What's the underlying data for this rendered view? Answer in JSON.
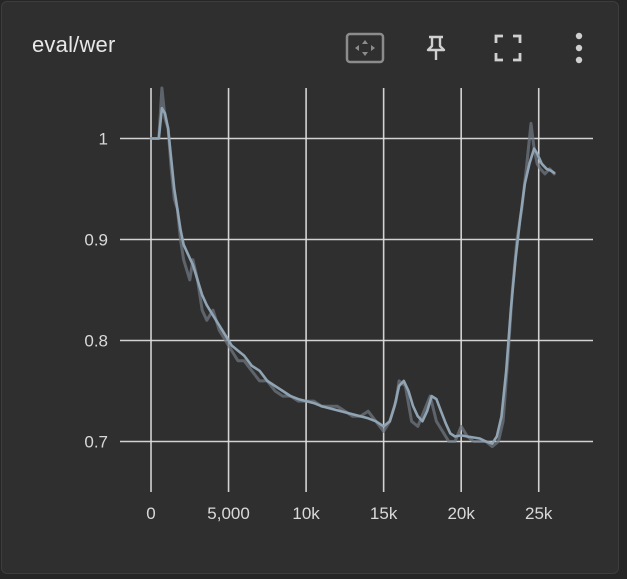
{
  "card": {
    "title": "eval/wer",
    "toolbar": [
      {
        "name": "fit-domain-button",
        "icon": "fit-to-data-icon"
      },
      {
        "name": "pin-button",
        "icon": "pin-icon"
      },
      {
        "name": "fullscreen-button",
        "icon": "fullscreen-icon"
      },
      {
        "name": "more-options-button",
        "icon": "more-vert-icon"
      }
    ]
  },
  "colors": {
    "background": "#2f2f2f",
    "grid": "#e0e0e0",
    "line_smoothed": "#90a4b4",
    "line_raw": "#6f7780",
    "tick_text": "#d9d9d9",
    "title_text": "#e8e8e8"
  },
  "chart_data": {
    "type": "line",
    "title": "eval/wer",
    "xlabel": "",
    "ylabel": "",
    "xlim": [
      -2000,
      28500
    ],
    "ylim": [
      0.65,
      1.05
    ],
    "x_ticks": [
      0,
      5000,
      10000,
      15000,
      20000,
      25000
    ],
    "x_tick_labels": [
      "0",
      "5,000",
      "10k",
      "15k",
      "20k",
      "25k"
    ],
    "y_ticks": [
      0.7,
      0.8,
      0.9,
      1.0
    ],
    "y_tick_labels": [
      "0.7",
      "0.8",
      "0.9",
      "1"
    ],
    "grid": true,
    "series": [
      {
        "name": "raw",
        "x": [
          0,
          500,
          700,
          900,
          1100,
          1300,
          1500,
          1700,
          1900,
          2100,
          2300,
          2500,
          2700,
          3000,
          3300,
          3600,
          4000,
          4400,
          4800,
          5200,
          5600,
          6000,
          6500,
          7000,
          7500,
          8000,
          8500,
          9000,
          9500,
          10000,
          10500,
          11000,
          11500,
          12000,
          12500,
          13000,
          13500,
          14000,
          14500,
          15000,
          15400,
          15800,
          16000,
          16400,
          16800,
          17200,
          17600,
          18000,
          18400,
          18800,
          19200,
          19600,
          20000,
          20400,
          20800,
          21200,
          21600,
          22000,
          22400,
          22700,
          23000,
          23300,
          23600,
          23900,
          24200,
          24500,
          24700,
          24900,
          25100,
          25400,
          25700,
          26000
        ],
        "values": [
          1.0,
          1.0,
          1.05,
          1.02,
          1.01,
          0.97,
          0.94,
          0.93,
          0.9,
          0.88,
          0.87,
          0.86,
          0.88,
          0.86,
          0.83,
          0.82,
          0.83,
          0.81,
          0.8,
          0.79,
          0.78,
          0.78,
          0.77,
          0.76,
          0.76,
          0.75,
          0.745,
          0.745,
          0.74,
          0.74,
          0.74,
          0.735,
          0.735,
          0.735,
          0.73,
          0.725,
          0.725,
          0.73,
          0.72,
          0.71,
          0.72,
          0.74,
          0.76,
          0.755,
          0.72,
          0.715,
          0.73,
          0.745,
          0.72,
          0.71,
          0.7,
          0.7,
          0.715,
          0.705,
          0.7,
          0.7,
          0.7,
          0.695,
          0.7,
          0.72,
          0.78,
          0.85,
          0.9,
          0.93,
          0.97,
          1.015,
          0.99,
          0.975,
          0.97,
          0.965,
          0.97,
          0.965
        ]
      },
      {
        "name": "smoothed",
        "x": [
          0,
          500,
          700,
          900,
          1100,
          1300,
          1500,
          1700,
          1900,
          2100,
          2400,
          2700,
          3000,
          3300,
          3600,
          4000,
          4400,
          4800,
          5200,
          5600,
          6000,
          6500,
          7000,
          7500,
          8000,
          8500,
          9000,
          9500,
          10000,
          10500,
          11000,
          11500,
          12000,
          12500,
          13000,
          13500,
          14000,
          14500,
          15000,
          15400,
          15700,
          16000,
          16300,
          16600,
          16900,
          17200,
          17500,
          17800,
          18100,
          18400,
          18700,
          19000,
          19300,
          19600,
          20000,
          20400,
          20800,
          21200,
          21600,
          22000,
          22300,
          22600,
          22900,
          23200,
          23500,
          23800,
          24100,
          24400,
          24700,
          24900,
          25200,
          25500,
          25800,
          26000
        ],
        "values": [
          1.0,
          1.0,
          1.03,
          1.025,
          1.01,
          0.98,
          0.95,
          0.93,
          0.91,
          0.895,
          0.885,
          0.875,
          0.86,
          0.845,
          0.835,
          0.825,
          0.815,
          0.805,
          0.795,
          0.79,
          0.785,
          0.775,
          0.77,
          0.76,
          0.755,
          0.75,
          0.745,
          0.742,
          0.74,
          0.738,
          0.735,
          0.733,
          0.731,
          0.729,
          0.727,
          0.725,
          0.723,
          0.72,
          0.715,
          0.72,
          0.735,
          0.755,
          0.76,
          0.75,
          0.735,
          0.725,
          0.72,
          0.73,
          0.745,
          0.742,
          0.73,
          0.718,
          0.708,
          0.705,
          0.706,
          0.705,
          0.704,
          0.703,
          0.7,
          0.698,
          0.705,
          0.725,
          0.77,
          0.83,
          0.88,
          0.92,
          0.955,
          0.975,
          0.99,
          0.985,
          0.975,
          0.97,
          0.968,
          0.966
        ]
      }
    ]
  }
}
